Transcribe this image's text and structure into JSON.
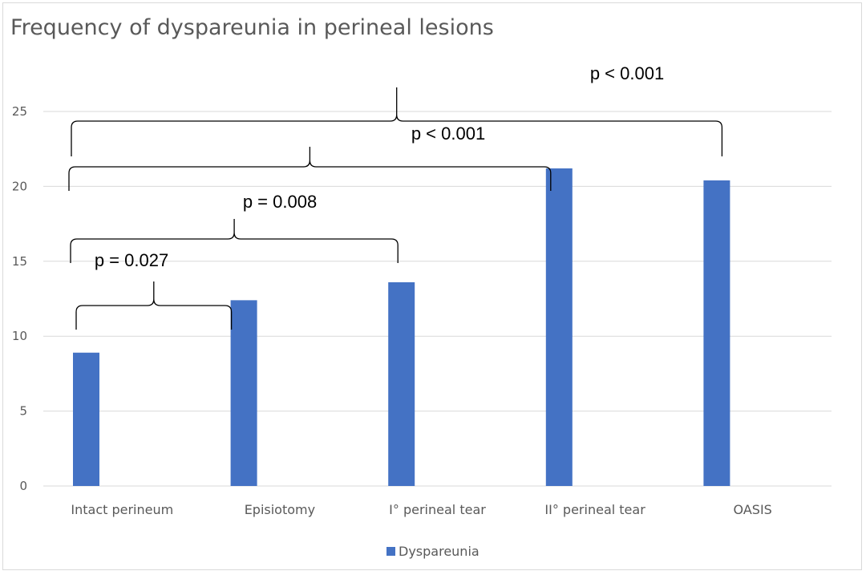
{
  "chart_data": {
    "type": "bar",
    "title": "Frequency of dyspareunia in perineal lesions",
    "categories": [
      "Intact perineum",
      "Episiotomy",
      "I° perineal tear",
      "II° perineal tear",
      "OASIS"
    ],
    "series": [
      {
        "name": "Dyspareunia",
        "values": [
          8.9,
          12.4,
          13.6,
          21.2,
          20.4
        ],
        "color": "#4472c4"
      }
    ],
    "ylim": [
      0,
      25
    ],
    "yticks": [
      0,
      5,
      10,
      15,
      20,
      25
    ],
    "grid": true,
    "legend_position": "bottom",
    "annotations": [
      {
        "label": "p = 0.027",
        "from": "Intact perineum",
        "to": "Episiotomy"
      },
      {
        "label": "p = 0.008",
        "from": "Intact perineum",
        "to": "I° perineal tear"
      },
      {
        "label": "p < 0.001",
        "from": "Intact perineum",
        "to": "II° perineal tear"
      },
      {
        "label": "p < 0.001",
        "from": "Intact perineum",
        "to": "OASIS"
      }
    ]
  }
}
